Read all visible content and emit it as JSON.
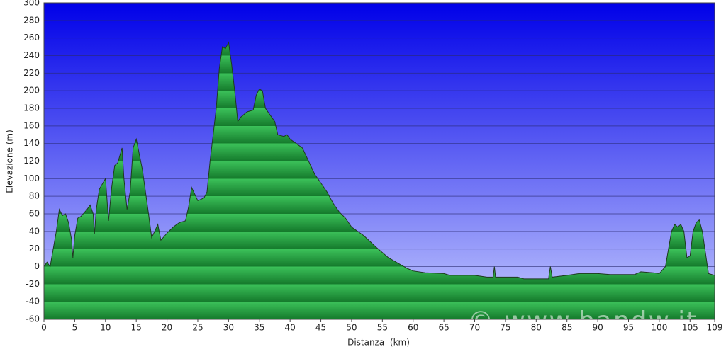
{
  "chart_data": {
    "type": "area",
    "x_label": "Distanza  (km)",
    "y_label": "Elevazione (m)",
    "annotation": "© www.bandw.it",
    "color": "#1a9a3a",
    "x": [
      0,
      0.5,
      1,
      2,
      2.5,
      3,
      3.5,
      4,
      4.5,
      4.7,
      5,
      5.5,
      6,
      7,
      7.5,
      8,
      8.2,
      8.5,
      9,
      10,
      10.5,
      11,
      11.5,
      12,
      12.7,
      13,
      13.5,
      14,
      14.5,
      15,
      16,
      17,
      17.5,
      18,
      18.5,
      19,
      20,
      21,
      22,
      23,
      23.5,
      24,
      25,
      26,
      26.5,
      27,
      28,
      28.5,
      29,
      29.5,
      30,
      30.5,
      31,
      31.5,
      32,
      33,
      34,
      34.5,
      35,
      35.5,
      36,
      37,
      37.5,
      38,
      39,
      39.5,
      40,
      41,
      42,
      43,
      44,
      45,
      46,
      47,
      48,
      49,
      50,
      52,
      54,
      56,
      58,
      59,
      60,
      62,
      65,
      66,
      70,
      72,
      73,
      73.2,
      73.4,
      77,
      78,
      80,
      82,
      82.3,
      82.6,
      85,
      87,
      90,
      92,
      96,
      97,
      99,
      100,
      101,
      102,
      102.5,
      103,
      103.5,
      104,
      104.5,
      105,
      105.5,
      106,
      106.5,
      107,
      108,
      109
    ],
    "values": [
      0,
      5,
      0,
      40,
      65,
      58,
      60,
      50,
      30,
      10,
      35,
      55,
      57,
      65,
      70,
      60,
      37,
      65,
      88,
      100,
      52,
      90,
      115,
      118,
      135,
      100,
      65,
      85,
      135,
      145,
      110,
      60,
      33,
      40,
      48,
      30,
      38,
      45,
      50,
      52,
      68,
      90,
      75,
      78,
      85,
      120,
      180,
      225,
      250,
      248,
      255,
      230,
      200,
      165,
      170,
      176,
      178,
      195,
      202,
      200,
      180,
      170,
      165,
      150,
      148,
      150,
      145,
      140,
      135,
      120,
      105,
      95,
      85,
      72,
      62,
      55,
      45,
      35,
      22,
      10,
      2,
      -2,
      -5,
      -7,
      -8,
      -10,
      -10,
      -12,
      -12,
      0,
      -12,
      -12,
      -14,
      -14,
      -14,
      0,
      -12,
      -10,
      -8,
      -8,
      -9,
      -9,
      -6,
      -7,
      -8,
      0,
      40,
      48,
      45,
      48,
      40,
      10,
      12,
      40,
      50,
      53,
      40,
      -8,
      -10
    ],
    "xlim": [
      0,
      109
    ],
    "ylim": [
      -60,
      300
    ],
    "xticks": [
      0,
      5,
      10,
      15,
      20,
      25,
      30,
      35,
      40,
      45,
      50,
      55,
      60,
      65,
      70,
      75,
      80,
      85,
      90,
      95,
      100,
      105,
      109
    ],
    "yticks": [
      -60,
      -40,
      -20,
      0,
      20,
      40,
      60,
      80,
      100,
      120,
      140,
      160,
      180,
      200,
      220,
      240,
      260,
      280,
      300
    ],
    "grid": true
  }
}
